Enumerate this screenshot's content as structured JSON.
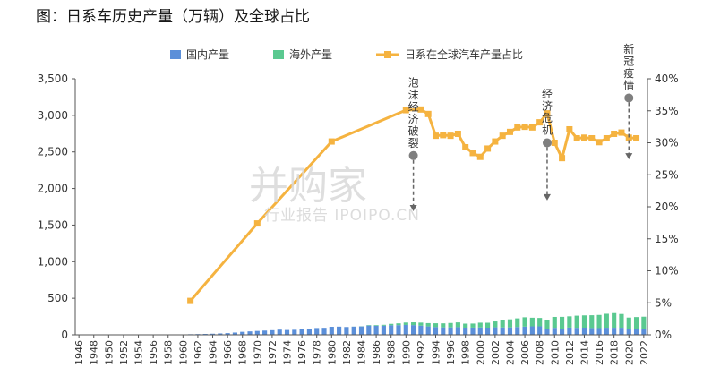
{
  "watermark": {
    "main": "并购家",
    "sub": "行业报告 IPOIPO.CN"
  },
  "chart_data": {
    "type": "bar",
    "title": "图：日系车历史产量（万辆）及全球占比",
    "stacked": true,
    "categories": [
      "1946",
      "1947",
      "1948",
      "1949",
      "1950",
      "1951",
      "1952",
      "1953",
      "1954",
      "1955",
      "1956",
      "1957",
      "1958",
      "1959",
      "1960",
      "1961",
      "1962",
      "1963",
      "1964",
      "1965",
      "1966",
      "1967",
      "1968",
      "1969",
      "1970",
      "1971",
      "1972",
      "1973",
      "1974",
      "1975",
      "1976",
      "1977",
      "1978",
      "1979",
      "1980",
      "1981",
      "1982",
      "1983",
      "1984",
      "1985",
      "1986",
      "1987",
      "1988",
      "1989",
      "1990",
      "1991",
      "1992",
      "1993",
      "1994",
      "1995",
      "1996",
      "1997",
      "1998",
      "1999",
      "2000",
      "2001",
      "2002",
      "2003",
      "2004",
      "2005",
      "2006",
      "2007",
      "2008",
      "2009",
      "2010",
      "2011",
      "2012",
      "2013",
      "2014",
      "2015",
      "2016",
      "2017",
      "2018",
      "2019",
      "2020",
      "2021",
      "2022"
    ],
    "x_tick_labels": [
      "1946",
      "1948",
      "1950",
      "1952",
      "1954",
      "1956",
      "1958",
      "1960",
      "1962",
      "1964",
      "1966",
      "1968",
      "1970",
      "1972",
      "1974",
      "1976",
      "1978",
      "1980",
      "1982",
      "1984",
      "1986",
      "1988",
      "1990",
      "1992",
      "1994",
      "1996",
      "1998",
      "2000",
      "2002",
      "2004",
      "2006",
      "2008",
      "2010",
      "2012",
      "2014",
      "2016",
      "2018",
      "2020",
      "2022"
    ],
    "series": [
      {
        "name": "国内产量",
        "type": "bar",
        "axis": "left",
        "color": "#5b8fd9",
        "values": [
          0,
          0,
          0,
          0,
          0,
          0,
          0,
          0,
          0,
          0,
          0,
          0,
          0,
          3,
          5,
          8,
          10,
          12,
          15,
          19,
          23,
          31,
          41,
          47,
          53,
          58,
          63,
          71,
          66,
          69,
          78,
          85,
          93,
          96,
          110,
          112,
          107,
          112,
          115,
          127,
          124,
          125,
          130,
          132,
          135,
          133,
          125,
          115,
          106,
          102,
          102,
          105,
          98,
          99,
          101,
          98,
          103,
          101,
          102,
          107,
          112,
          116,
          116,
          79,
          96,
          84,
          99,
          96,
          98,
          93,
          92,
          97,
          97,
          97,
          81,
          78,
          78
        ]
      },
      {
        "name": "海外产量",
        "type": "bar",
        "axis": "left",
        "color": "#5ac990",
        "values": [
          0,
          0,
          0,
          0,
          0,
          0,
          0,
          0,
          0,
          0,
          0,
          0,
          0,
          0,
          0,
          0,
          0,
          0,
          0,
          0,
          0,
          0,
          0,
          0,
          0,
          0,
          0,
          0,
          0,
          0,
          0,
          0,
          0,
          0,
          0,
          0,
          0,
          1,
          2,
          6,
          9,
          12,
          20,
          25,
          33,
          38,
          42,
          45,
          52,
          55,
          60,
          65,
          55,
          55,
          65,
          67,
          80,
          98,
          110,
          118,
          128,
          118,
          115,
          129,
          149,
          162,
          154,
          166,
          168,
          175,
          180,
          191,
          200,
          188,
          155,
          165,
          170
        ]
      },
      {
        "name": "日系在全球汽车产量占比",
        "type": "line",
        "axis": "right",
        "color": "#f5b340",
        "x": [
          "1961",
          "1970",
          "1980",
          "1990",
          "1992",
          "1993",
          "1994",
          "1995",
          "1996",
          "1997",
          "1998",
          "1999",
          "2000",
          "2001",
          "2002",
          "2003",
          "2004",
          "2005",
          "2006",
          "2007",
          "2008",
          "2009",
          "2010",
          "2011",
          "2012",
          "2013",
          "2014",
          "2015",
          "2016",
          "2017",
          "2018",
          "2019",
          "2020",
          "2021"
        ],
        "values": [
          5.3,
          17.4,
          30.2,
          35.1,
          35.2,
          34.5,
          31.1,
          31.2,
          31.1,
          31.4,
          29.3,
          28.4,
          27.8,
          29.1,
          30.2,
          31.1,
          31.7,
          32.4,
          32.5,
          32.4,
          33.2,
          34.6,
          30.0,
          27.6,
          32.1,
          30.7,
          30.8,
          30.7,
          30.1,
          30.7,
          31.4,
          31.6,
          30.8,
          30.7
        ]
      }
    ],
    "y_left": {
      "min": 0,
      "max": 3500,
      "ticks": [
        0,
        500,
        1000,
        1500,
        2000,
        2500,
        3000,
        3500
      ],
      "tick_labels": [
        "0",
        "500",
        "1,000",
        "1,500",
        "2,000",
        "2,500",
        "3,000",
        "3,500"
      ]
    },
    "y_right": {
      "min": 0,
      "max": 40,
      "ticks": [
        0,
        5,
        10,
        15,
        20,
        25,
        30,
        35,
        40
      ],
      "tick_labels": [
        "0%",
        "5%",
        "10%",
        "15%",
        "20%",
        "25%",
        "30%",
        "35%",
        "40%"
      ]
    },
    "legend_position": "top",
    "grid": false,
    "annotations": [
      {
        "label": "泡沫经济破裂",
        "year": "1991",
        "marker_value": 28.0,
        "arrow_to": 19.3
      },
      {
        "label": "经济危机",
        "year": "2009",
        "marker_value": 30.0,
        "arrow_to": 21.0
      },
      {
        "label": "新冠疫情",
        "year": "2020",
        "marker_value": 37.0,
        "arrow_to": 27.4
      }
    ]
  }
}
